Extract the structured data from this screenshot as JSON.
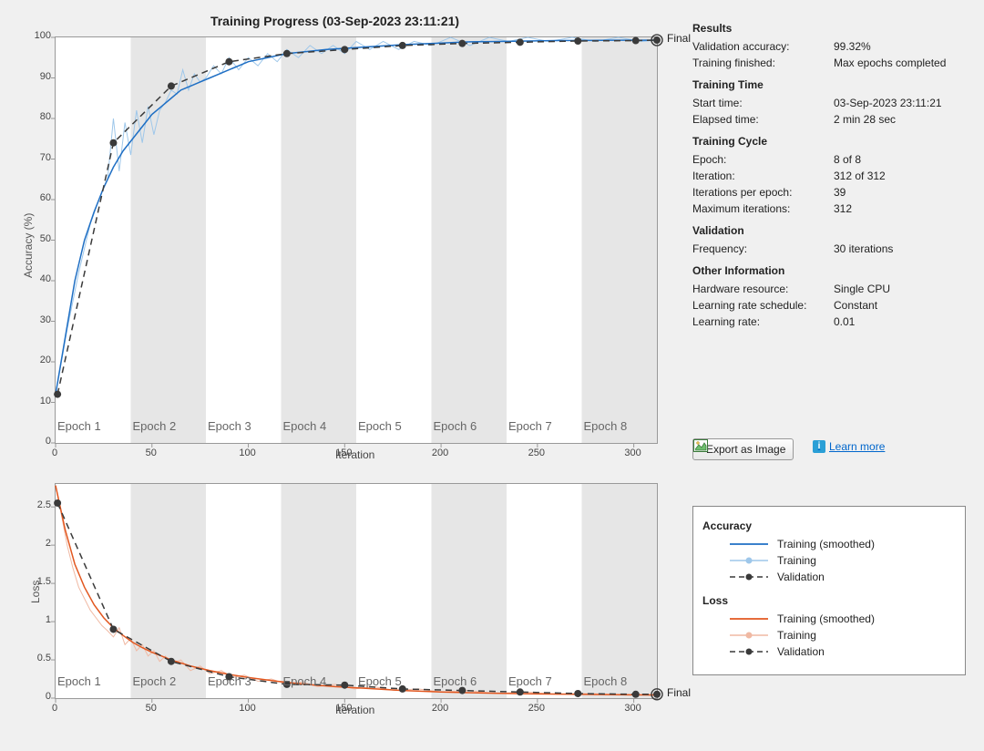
{
  "title": "Training Progress (03-Sep-2023 23:11:21)",
  "iterations_total": 312,
  "epoch_boundaries": [
    0,
    39,
    78,
    117,
    156,
    195,
    234,
    273,
    312
  ],
  "epoch_labels": [
    "Epoch 1",
    "Epoch 2",
    "Epoch 3",
    "Epoch 4",
    "Epoch 5",
    "Epoch 6",
    "Epoch 7",
    "Epoch 8"
  ],
  "final_label": "Final",
  "accuracy_chart": {
    "ylabel": "Accuracy (%)",
    "xlabel": "Iteration",
    "ylim": [
      0,
      100
    ],
    "yticks": [
      0,
      10,
      20,
      30,
      40,
      50,
      60,
      70,
      80,
      90,
      100
    ],
    "xlim": [
      0,
      312
    ],
    "xticks": [
      0,
      50,
      100,
      150,
      200,
      250,
      300
    ],
    "colors": {
      "training_smoothed": "#1f6fc4",
      "training_raw": "#9ec7ea",
      "validation": "#3a3a3a"
    },
    "line_widths": {
      "training_smoothed": 1.5,
      "training_raw": 1,
      "validation": 1.5
    },
    "marker_radius": 4,
    "training_raw": {
      "x": [
        0,
        3,
        6,
        9,
        12,
        15,
        18,
        21,
        24,
        27,
        30,
        33,
        36,
        39,
        42,
        45,
        48,
        51,
        54,
        57,
        60,
        63,
        66,
        69,
        72,
        75,
        78,
        82,
        86,
        90,
        95,
        100,
        105,
        110,
        115,
        120,
        126,
        132,
        138,
        144,
        150,
        156,
        163,
        170,
        178,
        186,
        195,
        205,
        215,
        225,
        235,
        245,
        256,
        268,
        280,
        292,
        304,
        312
      ],
      "y": [
        12,
        20,
        28,
        35,
        42,
        48,
        54,
        58,
        62,
        65,
        80,
        67,
        79,
        71,
        82,
        74,
        83,
        76,
        82,
        84,
        87,
        86,
        92,
        87,
        91,
        89,
        90,
        93,
        91,
        95,
        92,
        95,
        93,
        96,
        94,
        97,
        95,
        98,
        96,
        98,
        96,
        99,
        97,
        99,
        97,
        99,
        98,
        100,
        98,
        100,
        99,
        100,
        99,
        100,
        99,
        100,
        99,
        99.3
      ]
    },
    "training_smoothed": {
      "x": [
        0,
        5,
        10,
        15,
        20,
        25,
        30,
        35,
        40,
        45,
        50,
        55,
        60,
        65,
        70,
        75,
        80,
        85,
        90,
        95,
        100,
        110,
        120,
        130,
        140,
        150,
        160,
        170,
        180,
        190,
        200,
        215,
        230,
        245,
        260,
        275,
        290,
        305,
        312
      ],
      "y": [
        12,
        26,
        40,
        50,
        57,
        63,
        68,
        72,
        75,
        78,
        81,
        83,
        85,
        87,
        88,
        89,
        90,
        91,
        92,
        93,
        94,
        95,
        96,
        96.5,
        97,
        97.3,
        97.6,
        97.9,
        98.2,
        98.4,
        98.6,
        98.9,
        99.0,
        99.1,
        99.2,
        99.25,
        99.3,
        99.3,
        99.32
      ]
    },
    "validation": {
      "x": [
        1,
        30,
        60,
        90,
        120,
        150,
        180,
        211,
        241,
        271,
        301,
        312
      ],
      "y": [
        12,
        74,
        88,
        94,
        96,
        97,
        98,
        98.5,
        98.8,
        99.1,
        99.2,
        99.32
      ]
    }
  },
  "loss_chart": {
    "ylabel": "Loss",
    "xlabel": "Iteration",
    "ylim": [
      0,
      2.8
    ],
    "yticks": [
      0,
      0.5,
      1,
      1.5,
      2,
      2.5
    ],
    "xlim": [
      0,
      312
    ],
    "xticks": [
      0,
      50,
      100,
      150,
      200,
      250,
      300
    ],
    "colors": {
      "training_smoothed": "#e2571f",
      "training_raw": "#f0b9a3",
      "validation": "#3a3a3a"
    },
    "line_widths": {
      "training_smoothed": 1.5,
      "training_raw": 1,
      "validation": 1.5
    },
    "marker_radius": 4,
    "training_raw": {
      "x": [
        0,
        3,
        6,
        9,
        12,
        15,
        18,
        21,
        24,
        27,
        30,
        33,
        36,
        39,
        42,
        45,
        48,
        51,
        54,
        57,
        60,
        65,
        70,
        75,
        80,
        86,
        92,
        98,
        105,
        112,
        120,
        128,
        136,
        145,
        155,
        165,
        176,
        188,
        200,
        214,
        228,
        244,
        260,
        278,
        296,
        312
      ],
      "y": [
        2.78,
        2.4,
        2.0,
        1.7,
        1.45,
        1.3,
        1.15,
        1.05,
        0.95,
        0.88,
        0.8,
        0.92,
        0.7,
        0.78,
        0.62,
        0.7,
        0.55,
        0.62,
        0.48,
        0.55,
        0.45,
        0.5,
        0.36,
        0.42,
        0.32,
        0.36,
        0.27,
        0.3,
        0.22,
        0.25,
        0.18,
        0.21,
        0.15,
        0.18,
        0.12,
        0.15,
        0.1,
        0.12,
        0.08,
        0.1,
        0.06,
        0.08,
        0.05,
        0.06,
        0.04,
        0.05
      ]
    },
    "training_smoothed": {
      "x": [
        0,
        5,
        10,
        15,
        20,
        25,
        30,
        35,
        40,
        45,
        50,
        55,
        60,
        70,
        80,
        90,
        100,
        115,
        130,
        145,
        160,
        180,
        200,
        225,
        250,
        280,
        312
      ],
      "y": [
        2.78,
        2.2,
        1.75,
        1.45,
        1.22,
        1.05,
        0.92,
        0.82,
        0.73,
        0.66,
        0.6,
        0.55,
        0.5,
        0.42,
        0.36,
        0.31,
        0.27,
        0.22,
        0.18,
        0.15,
        0.13,
        0.1,
        0.08,
        0.065,
        0.055,
        0.048,
        0.04
      ]
    },
    "validation": {
      "x": [
        1,
        30,
        60,
        90,
        120,
        150,
        180,
        211,
        241,
        271,
        301,
        312
      ],
      "y": [
        2.55,
        0.9,
        0.48,
        0.28,
        0.18,
        0.17,
        0.12,
        0.1,
        0.08,
        0.06,
        0.05,
        0.05
      ]
    }
  },
  "results": {
    "heading": "Results",
    "rows": [
      {
        "k": "Validation accuracy:",
        "v": "99.32%"
      },
      {
        "k": "Training finished:",
        "v": "Max epochs completed"
      }
    ]
  },
  "training_time": {
    "heading": "Training Time",
    "rows": [
      {
        "k": "Start time:",
        "v": "03-Sep-2023 23:11:21"
      },
      {
        "k": "Elapsed time:",
        "v": "2 min 28 sec"
      }
    ]
  },
  "training_cycle": {
    "heading": "Training Cycle",
    "rows": [
      {
        "k": "Epoch:",
        "v": "8 of 8"
      },
      {
        "k": "Iteration:",
        "v": "312 of 312"
      },
      {
        "k": "Iterations per epoch:",
        "v": "39"
      },
      {
        "k": "Maximum iterations:",
        "v": "312"
      }
    ]
  },
  "validation_info": {
    "heading": "Validation",
    "rows": [
      {
        "k": "Frequency:",
        "v": "30 iterations"
      }
    ]
  },
  "other_info": {
    "heading": "Other Information",
    "rows": [
      {
        "k": "Hardware resource:",
        "v": "Single CPU"
      },
      {
        "k": "Learning rate schedule:",
        "v": "Constant"
      },
      {
        "k": "Learning rate:",
        "v": "0.01"
      }
    ]
  },
  "export_button_label": "Export as Image",
  "learn_more_label": "Learn more",
  "legend": {
    "accuracy_heading": "Accuracy",
    "loss_heading": "Loss",
    "training_smoothed": "Training (smoothed)",
    "training": "Training",
    "validation": "Validation"
  }
}
